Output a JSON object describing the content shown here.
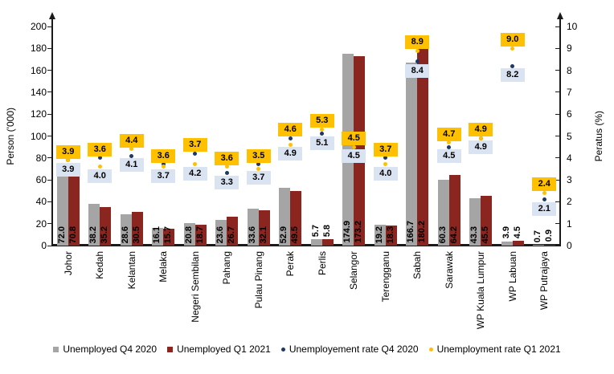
{
  "chart_data": {
    "type": "bar",
    "title": "",
    "categories": [
      "Johor",
      "Kedah",
      "Kelantan",
      "Melaka",
      "Negeri Sembilan",
      "Pahang",
      "Pulau Pinang",
      "Perak",
      "Perlis",
      "Selangor",
      "Terengganu",
      "Sabah",
      "Sarawak",
      "WP Kuala Lumpur",
      "WP Labuan",
      "WP Putrajaya"
    ],
    "series": [
      {
        "name": "Unemployed Q4 2020",
        "type": "bar",
        "axis": "left",
        "color": "#A5A5A5",
        "values": [
          72.0,
          38.2,
          28.6,
          16.1,
          20.8,
          23.6,
          33.6,
          52.9,
          5.7,
          174.9,
          19.2,
          166.7,
          60.3,
          43.3,
          3.9,
          0.7
        ]
      },
      {
        "name": "Unemployed Q1 2021",
        "type": "bar",
        "axis": "left",
        "color": "#8B2520",
        "values": [
          70.8,
          35.2,
          30.5,
          15.7,
          18.7,
          26.7,
          32.1,
          49.5,
          5.8,
          173.2,
          18.3,
          180.2,
          64.2,
          45.5,
          4.5,
          0.9
        ]
      },
      {
        "name": "Unemployement rate Q4 2020",
        "type": "scatter",
        "axis": "right",
        "color": "#1F3864",
        "label_bg": "#DAE3F2",
        "label_text": "#000000",
        "values": [
          3.9,
          4.0,
          4.1,
          3.7,
          4.2,
          3.3,
          3.7,
          4.9,
          5.1,
          4.5,
          4.0,
          8.4,
          4.5,
          4.9,
          8.2,
          2.1
        ]
      },
      {
        "name": "Unemployment rate Q1 2021",
        "type": "scatter",
        "axis": "right",
        "color": "#FFC000",
        "label_bg": "#FFC000",
        "label_text": "#000000",
        "values": [
          3.9,
          3.6,
          4.4,
          3.6,
          3.7,
          3.6,
          3.5,
          4.6,
          5.3,
          4.5,
          3.7,
          8.9,
          4.7,
          4.9,
          9.0,
          2.4
        ]
      }
    ],
    "left_axis": {
      "title": "Person ('000)",
      "min": 0,
      "max": 200,
      "tick_step": 20
    },
    "right_axis": {
      "title": "Peratus (%)",
      "min": 0,
      "max": 10,
      "tick_step": 1
    },
    "legend_position": "bottom",
    "grid": false,
    "value_label_decimals": 1,
    "value_label_outside_threshold": 10
  }
}
